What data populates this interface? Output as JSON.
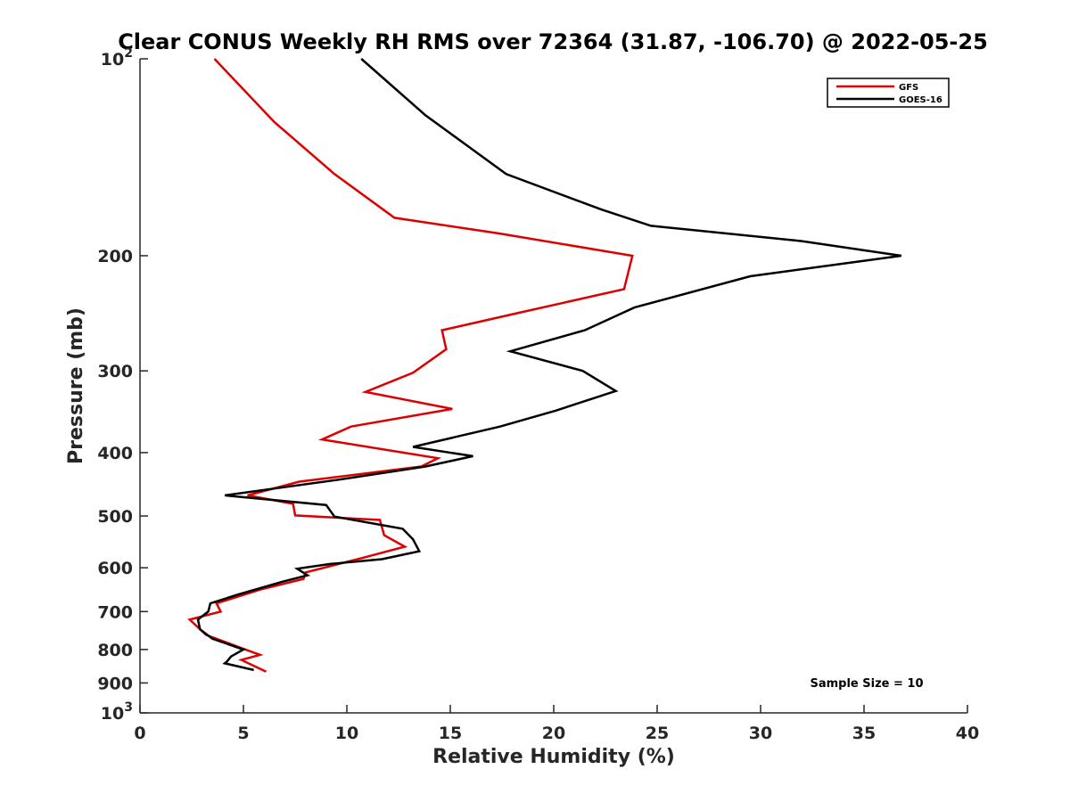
{
  "chart_data": {
    "type": "line",
    "title": "Clear CONUS Weekly RH RMS over 72364 (31.87, -106.70) @ 2022-05-25",
    "xlabel": "Relative Humidity (%)",
    "ylabel": "Pressure (mb)",
    "xlim": [
      0,
      40
    ],
    "ylim": [
      100,
      1000
    ],
    "y_scale": "log",
    "y_reversed": true,
    "grid": false,
    "legend_position": "top-right",
    "x_ticks": [
      0,
      5,
      10,
      15,
      20,
      25,
      30,
      35,
      40
    ],
    "x_tick_labels": [
      "0",
      "5",
      "10",
      "15",
      "20",
      "25",
      "30",
      "35",
      "40"
    ],
    "y_ticks": [
      100,
      200,
      300,
      400,
      500,
      600,
      700,
      800,
      900,
      1000
    ],
    "y_tick_labels": [
      {
        "base": "10",
        "exp": "2"
      },
      {
        "base": "200",
        "exp": ""
      },
      {
        "base": "300",
        "exp": ""
      },
      {
        "base": "400",
        "exp": ""
      },
      {
        "base": "500",
        "exp": ""
      },
      {
        "base": "600",
        "exp": ""
      },
      {
        "base": "700",
        "exp": ""
      },
      {
        "base": "800",
        "exp": ""
      },
      {
        "base": "900",
        "exp": ""
      },
      {
        "base": "10",
        "exp": "3"
      }
    ],
    "series": [
      {
        "name": "GFS",
        "color": "#dd0000",
        "points": [
          [
            3.6,
            100
          ],
          [
            6.5,
            125
          ],
          [
            9.4,
            150
          ],
          [
            12.3,
            175
          ],
          [
            17.4,
            185
          ],
          [
            23.8,
            200
          ],
          [
            23.4,
            225
          ],
          [
            18.2,
            245
          ],
          [
            14.6,
            260
          ],
          [
            14.8,
            278
          ],
          [
            13.2,
            302
          ],
          [
            10.9,
            323
          ],
          [
            15.1,
            343
          ],
          [
            10.2,
            365
          ],
          [
            8.8,
            382
          ],
          [
            14.4,
            408
          ],
          [
            13.6,
            420
          ],
          [
            7.7,
            443
          ],
          [
            5.2,
            465
          ],
          [
            7.4,
            479
          ],
          [
            7.5,
            499
          ],
          [
            11.6,
            507
          ],
          [
            11.8,
            535
          ],
          [
            12.8,
            557
          ],
          [
            10.8,
            579
          ],
          [
            8.0,
            610
          ],
          [
            7.9,
            624
          ],
          [
            5.8,
            648
          ],
          [
            3.7,
            680
          ],
          [
            3.9,
            700
          ],
          [
            2.4,
            720
          ],
          [
            3.2,
            760
          ],
          [
            5.1,
            800
          ],
          [
            5.8,
            815
          ],
          [
            4.9,
            830
          ],
          [
            6.1,
            865
          ]
        ]
      },
      {
        "name": "GOES-16",
        "color": "#000000",
        "points": [
          [
            10.7,
            100
          ],
          [
            13.8,
            122
          ],
          [
            17.7,
            150
          ],
          [
            22.3,
            170
          ],
          [
            24.7,
            180
          ],
          [
            32.0,
            190
          ],
          [
            36.8,
            200
          ],
          [
            29.5,
            215
          ],
          [
            23.9,
            240
          ],
          [
            21.5,
            260
          ],
          [
            17.9,
            280
          ],
          [
            21.4,
            300
          ],
          [
            23.0,
            322
          ],
          [
            20.1,
            345
          ],
          [
            17.4,
            365
          ],
          [
            13.2,
            392
          ],
          [
            16.1,
            405
          ],
          [
            13.8,
            420
          ],
          [
            9.6,
            440
          ],
          [
            4.1,
            465
          ],
          [
            9.0,
            481
          ],
          [
            9.4,
            501
          ],
          [
            12.7,
            523
          ],
          [
            13.2,
            543
          ],
          [
            13.5,
            566
          ],
          [
            11.7,
            582
          ],
          [
            9.2,
            592
          ],
          [
            7.6,
            602
          ],
          [
            8.1,
            616
          ],
          [
            6.9,
            630
          ],
          [
            4.7,
            660
          ],
          [
            3.4,
            680
          ],
          [
            3.3,
            700
          ],
          [
            2.8,
            720
          ],
          [
            2.9,
            745
          ],
          [
            3.5,
            770
          ],
          [
            5.0,
            800
          ],
          [
            4.4,
            820
          ],
          [
            4.2,
            835
          ],
          [
            4.1,
            840
          ],
          [
            5.5,
            860
          ]
        ]
      }
    ],
    "annotation": "Sample Size = 10"
  }
}
